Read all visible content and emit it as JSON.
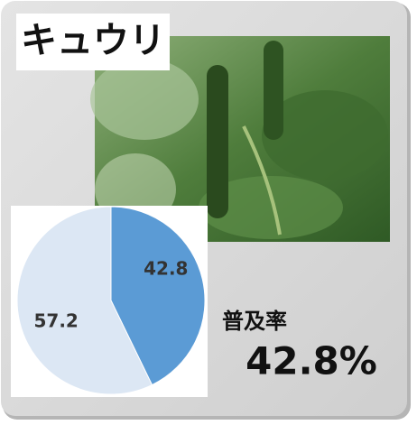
{
  "title": "キュウリ",
  "rate_label": "普及率",
  "rate_text": "42.8%",
  "chart_data": {
    "type": "pie",
    "values": [
      42.8,
      57.2
    ],
    "colors": [
      "#5b9bd5",
      "#dce7f4"
    ]
  }
}
